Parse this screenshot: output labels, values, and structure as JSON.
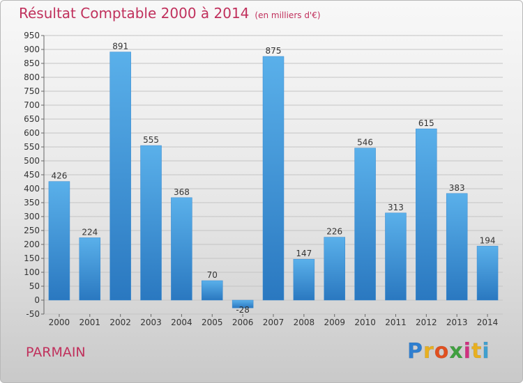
{
  "header": {
    "title": "Résultat Comptable 2000 à 2014",
    "subtitle": "(en milliers d'€)"
  },
  "place": "PARMAIN",
  "logo": {
    "letters": [
      "P",
      "r",
      "o",
      "x",
      "i",
      "t",
      "i"
    ],
    "colors": [
      "#2f7fd0",
      "#e8b020",
      "#e05020",
      "#40a040",
      "#d03080",
      "#e8b020",
      "#40a0d0"
    ]
  },
  "chart_data": {
    "type": "bar",
    "title": "Résultat Comptable 2000 à 2014",
    "subtitle": "(en milliers d'€)",
    "categories": [
      "2000",
      "2001",
      "2002",
      "2003",
      "2004",
      "2005",
      "2006",
      "2007",
      "2008",
      "2009",
      "2010",
      "2011",
      "2012",
      "2013",
      "2014"
    ],
    "values": [
      426,
      224,
      891,
      555,
      368,
      70,
      -28,
      875,
      147,
      226,
      546,
      313,
      615,
      383,
      194
    ],
    "data_labels": [
      "426",
      "224",
      "891",
      "555",
      "368",
      "70",
      "-28",
      "875",
      "147",
      "226",
      "546",
      "313",
      "615",
      "383",
      "194"
    ],
    "y_ticks": [
      "-50",
      "0",
      "50",
      "100",
      "150",
      "200",
      "250",
      "300",
      "350",
      "400",
      "450",
      "500",
      "550",
      "600",
      "650",
      "700",
      "750",
      "800",
      "850",
      "900",
      "950"
    ],
    "ylim": [
      -50,
      950
    ],
    "grid": true,
    "bar_color": "#4a9fe0"
  }
}
